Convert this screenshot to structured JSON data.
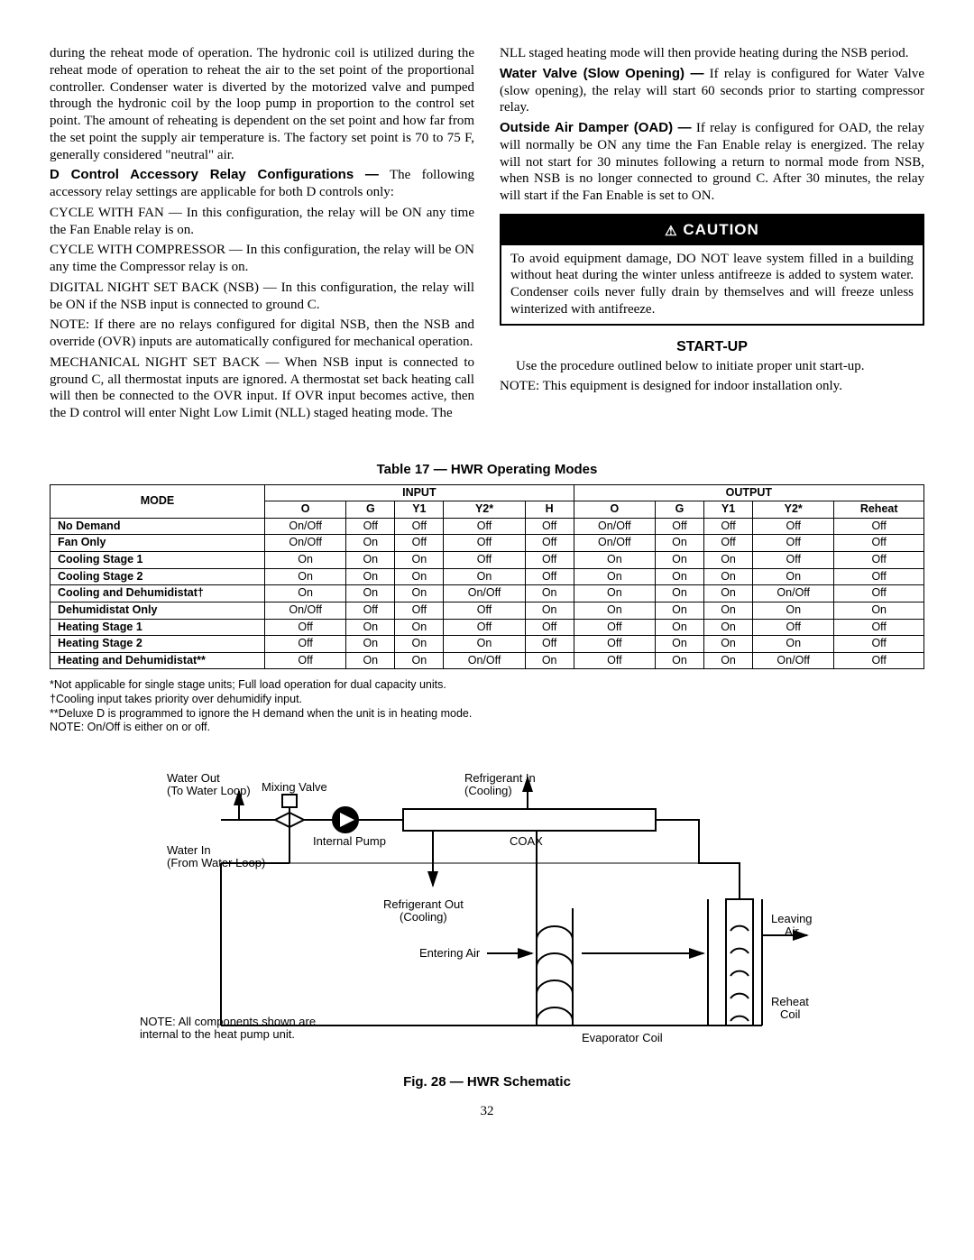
{
  "left": {
    "p1": "during the reheat mode of operation. The hydronic coil is utilized during the reheat mode of operation to reheat the air to the set point of the proportional controller. Condenser water is diverted by the motorized valve and pumped through the hydronic coil by the loop pump in proportion to the control set point. The amount of reheating is dependent on the set point and how far from the set point the supply air temperature is. The factory set point is 70 to 75 F, generally considered \"neutral\" air.",
    "h1": "D Control Accessory Relay Configurations —",
    "h1tail": " The following accessory relay settings are applicable for both D controls only:",
    "p2": "CYCLE WITH FAN — In this configuration, the relay will be ON any time the Fan Enable relay is on.",
    "p3": "CYCLE WITH COMPRESSOR — In this configuration, the relay will be ON any time the Compressor relay is on.",
    "p4": "DIGITAL NIGHT SET BACK (NSB) — In this configuration, the relay will be ON if the NSB input is connected to ground C.",
    "p5": "NOTE: If there are no relays configured for digital NSB, then the NSB and override (OVR) inputs are automatically configured for mechanical operation.",
    "p6": "MECHANICAL NIGHT SET BACK — When NSB input is connected to ground C, all thermostat inputs are ignored. A thermostat set back heating call will then be connected to the OVR input. If OVR input becomes active, then the D control will enter Night Low Limit (NLL) staged heating mode. The"
  },
  "right": {
    "p1": "NLL staged heating mode will then provide heating during the NSB period.",
    "h1": "Water Valve (Slow Opening) —",
    "h1tail": " If relay is configured for Water Valve (slow opening), the relay will start 60 seconds prior to starting compressor relay.",
    "h2": "Outside Air Damper (OAD) —",
    "h2tail": " If relay is configured for OAD, the relay will normally be ON any time the Fan Enable relay is energized. The relay will not start for 30 minutes following a return to normal mode from NSB, when NSB is no longer connected to ground C. After 30 minutes, the relay will start if the Fan Enable is set to ON.",
    "caution_head": "CAUTION",
    "caution_body": "To avoid equipment damage, DO NOT leave system filled in a building without heat during the winter unless antifreeze is added to system water. Condenser coils never fully drain by themselves and will freeze unless winterized with antifreeze.",
    "startup": "START-UP",
    "p2": "Use the procedure outlined below to initiate proper unit start-up.",
    "p3": "NOTE: This equipment is designed for indoor installation only."
  },
  "table": {
    "title": "Table 17 — HWR Operating Modes",
    "h_mode": "MODE",
    "h_input": "INPUT",
    "h_output": "OUTPUT",
    "cols": [
      "O",
      "G",
      "Y1",
      "Y2*",
      "H",
      "O",
      "G",
      "Y1",
      "Y2*",
      "Reheat"
    ],
    "rows": [
      {
        "m": "No Demand",
        "c": [
          "On/Off",
          "Off",
          "Off",
          "Off",
          "Off",
          "On/Off",
          "Off",
          "Off",
          "Off",
          "Off"
        ]
      },
      {
        "m": "Fan Only",
        "c": [
          "On/Off",
          "On",
          "Off",
          "Off",
          "Off",
          "On/Off",
          "On",
          "Off",
          "Off",
          "Off"
        ]
      },
      {
        "m": "Cooling Stage 1",
        "c": [
          "On",
          "On",
          "On",
          "Off",
          "Off",
          "On",
          "On",
          "On",
          "Off",
          "Off"
        ]
      },
      {
        "m": "Cooling Stage 2",
        "c": [
          "On",
          "On",
          "On",
          "On",
          "Off",
          "On",
          "On",
          "On",
          "On",
          "Off"
        ]
      },
      {
        "m": "Cooling and Dehumidistat†",
        "c": [
          "On",
          "On",
          "On",
          "On/Off",
          "On",
          "On",
          "On",
          "On",
          "On/Off",
          "Off"
        ]
      },
      {
        "m": "Dehumidistat Only",
        "c": [
          "On/Off",
          "Off",
          "Off",
          "Off",
          "On",
          "On",
          "On",
          "On",
          "On",
          "On"
        ]
      },
      {
        "m": "Heating Stage 1",
        "c": [
          "Off",
          "On",
          "On",
          "Off",
          "Off",
          "Off",
          "On",
          "On",
          "Off",
          "Off"
        ]
      },
      {
        "m": "Heating Stage 2",
        "c": [
          "Off",
          "On",
          "On",
          "On",
          "Off",
          "Off",
          "On",
          "On",
          "On",
          "Off"
        ]
      },
      {
        "m": "Heating and Dehumidistat**",
        "c": [
          "Off",
          "On",
          "On",
          "On/Off",
          "On",
          "Off",
          "On",
          "On",
          "On/Off",
          "Off"
        ]
      }
    ],
    "n1": "*Not applicable for single stage units; Full load operation for dual capacity units.",
    "n2": "†Cooling input takes priority over dehumidify input.",
    "n3": "**Deluxe D is programmed to ignore the H demand when the unit is in heating mode.",
    "n4": "NOTE: On/Off is either on or off."
  },
  "schem": {
    "water_out": "Water Out",
    "water_out2": "(To Water Loop)",
    "mixing": "Mixing Valve",
    "refrig_in": "Refrigerant In",
    "refrig_in2": "(Cooling)",
    "water_in": "Water In",
    "water_in2": "(From Water Loop)",
    "pump": "Internal Pump",
    "coax": "COAX",
    "refrig_out": "Refrigerant Out",
    "refrig_out2": "(Cooling)",
    "entering": "Entering Air",
    "leaving": "Leaving",
    "leaving2": "Air",
    "reheat": "Reheat",
    "reheat2": "Coil",
    "evap": "Evaporator Coil",
    "note1": "NOTE: All components shown are",
    "note2": "internal to the heat pump unit.",
    "fig": "Fig. 28 — HWR Schematic"
  },
  "page": "32"
}
